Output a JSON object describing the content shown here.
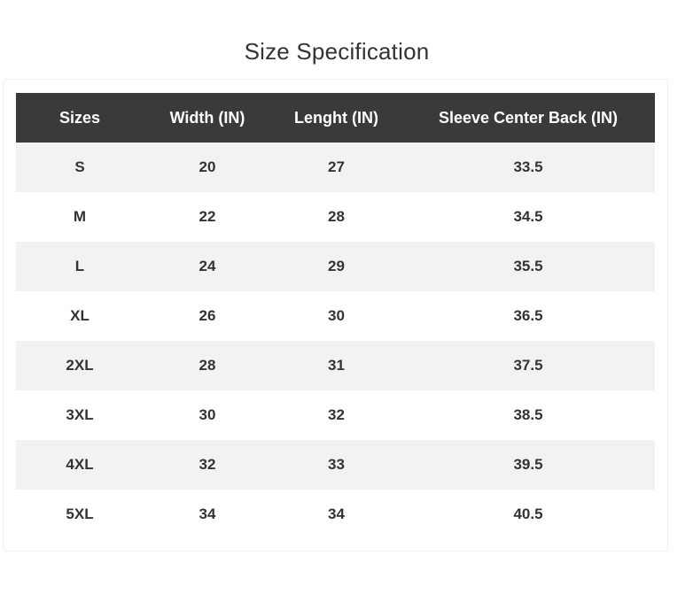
{
  "title": "Size Specification",
  "table": {
    "headers": [
      "Sizes",
      "Width (IN)",
      "Lenght (IN)",
      "Sleeve Center Back (IN)"
    ],
    "rows": [
      [
        "S",
        "20",
        "27",
        "33.5"
      ],
      [
        "M",
        "22",
        "28",
        "34.5"
      ],
      [
        "L",
        "24",
        "29",
        "35.5"
      ],
      [
        "XL",
        "26",
        "30",
        "36.5"
      ],
      [
        "2XL",
        "28",
        "31",
        "37.5"
      ],
      [
        "3XL",
        "30",
        "32",
        "38.5"
      ],
      [
        "4XL",
        "32",
        "33",
        "39.5"
      ],
      [
        "5XL",
        "34",
        "34",
        "40.5"
      ]
    ]
  },
  "colors": {
    "header_bg": "#3a3a3c",
    "stripe_bg": "#f2f2f4",
    "text": "#333333"
  }
}
